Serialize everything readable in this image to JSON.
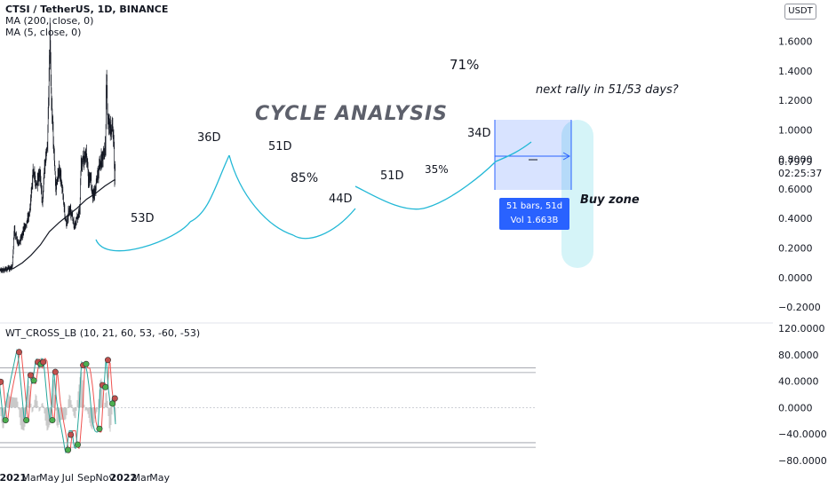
{
  "legend": {
    "symbol": "CTSI / TetherUS, 1D, BINANCE",
    "ma200": "MA (200, close, 0)",
    "ma5": "MA (5, close, 0)"
  },
  "oscillator_legend": "WT_CROSS_LB (10, 21, 60, 53, -60, -53)",
  "currency_button": "USDT",
  "last_price": "0.7979",
  "countdown": "02:25:37",
  "annotations": {
    "title": "CYCLE ANALYSIS",
    "question": "next rally in 51/53 days?",
    "buy_zone": "Buy zone",
    "pct_71": "71%",
    "pct_85": "85%",
    "pct_35": "35%",
    "d36": "36D",
    "d51a": "51D",
    "d53": "53D",
    "d44": "44D",
    "d51b": "51D",
    "d34": "34D"
  },
  "measure_box": {
    "line1": "51 bars, 51d",
    "line2": "Vol 1.663B"
  },
  "colors": {
    "candle": "#131722",
    "ma200": "#131722",
    "cycle_arcs": "#22b8d6",
    "wt1": "#26a69a",
    "wt2": "#ef5350",
    "measure": "#2962ff",
    "buy_zone": "#b2ebf2"
  },
  "chart_data": [
    {
      "type": "candlestick",
      "title": "CTSI / TetherUS, 1D, BINANCE",
      "x_ticks": [
        "2021",
        "Mar",
        "May",
        "Jul",
        "Sep",
        "Nov",
        "2022",
        "Mar",
        "May"
      ],
      "y_ticks": [
        "1.6000",
        "1.4000",
        "1.2000",
        "1.0000",
        "0.8000",
        "0.6000",
        "0.4000",
        "0.2000",
        "0.0000",
        "−0.2000"
      ],
      "ylim": [
        -0.26,
        1.82
      ],
      "close_path": [
        {
          "x": "2020-11-01",
          "y": 0.05
        },
        {
          "x": "2020-12-01",
          "y": 0.05
        },
        {
          "x": "2020-12-29",
          "y": 0.07
        },
        {
          "x": "2021-01-05",
          "y": 0.32
        },
        {
          "x": "2021-01-18",
          "y": 0.22
        },
        {
          "x": "2021-02-01",
          "y": 0.3
        },
        {
          "x": "2021-02-15",
          "y": 0.38
        },
        {
          "x": "2021-02-25",
          "y": 0.45
        },
        {
          "x": "2021-03-08",
          "y": 0.72
        },
        {
          "x": "2021-03-20",
          "y": 0.62
        },
        {
          "x": "2021-04-01",
          "y": 0.7
        },
        {
          "x": "2021-04-08",
          "y": 0.5
        },
        {
          "x": "2021-04-15",
          "y": 0.75
        },
        {
          "x": "2021-04-25",
          "y": 0.9
        },
        {
          "x": "2021-05-03",
          "y": 1.65
        },
        {
          "x": "2021-05-08",
          "y": 1.2
        },
        {
          "x": "2021-05-13",
          "y": 1.0
        },
        {
          "x": "2021-05-22",
          "y": 0.6
        },
        {
          "x": "2021-06-01",
          "y": 0.72
        },
        {
          "x": "2021-06-10",
          "y": 0.66
        },
        {
          "x": "2021-06-20",
          "y": 0.45
        },
        {
          "x": "2021-06-26",
          "y": 0.36
        },
        {
          "x": "2021-07-05",
          "y": 0.46
        },
        {
          "x": "2021-07-15",
          "y": 0.42
        },
        {
          "x": "2021-07-22",
          "y": 0.34
        },
        {
          "x": "2021-08-01",
          "y": 0.4
        },
        {
          "x": "2021-08-10",
          "y": 0.46
        },
        {
          "x": "2021-08-14",
          "y": 0.78
        },
        {
          "x": "2021-08-22",
          "y": 0.8
        },
        {
          "x": "2021-09-01",
          "y": 0.85
        },
        {
          "x": "2021-09-07",
          "y": 0.66
        },
        {
          "x": "2021-09-15",
          "y": 0.68
        },
        {
          "x": "2021-09-22",
          "y": 0.55
        },
        {
          "x": "2021-09-30",
          "y": 0.6
        },
        {
          "x": "2021-10-08",
          "y": 0.7
        },
        {
          "x": "2021-10-18",
          "y": 0.78
        },
        {
          "x": "2021-10-28",
          "y": 0.83
        },
        {
          "x": "2021-11-03",
          "y": 0.88
        },
        {
          "x": "2021-11-06",
          "y": 1.4
        },
        {
          "x": "2021-11-10",
          "y": 1.1
        },
        {
          "x": "2021-11-18",
          "y": 1.0
        },
        {
          "x": "2021-11-26",
          "y": 1.02
        },
        {
          "x": "2021-11-30",
          "y": 0.96
        },
        {
          "x": "2021-12-03",
          "y": 0.68
        },
        {
          "x": "2021-12-06",
          "y": 0.7979
        }
      ],
      "ma200_path": [
        {
          "x": "2020-11-01",
          "y": 0.05
        },
        {
          "x": "2021-01-01",
          "y": 0.06
        },
        {
          "x": "2021-02-01",
          "y": 0.1
        },
        {
          "x": "2021-03-01",
          "y": 0.15
        },
        {
          "x": "2021-04-01",
          "y": 0.22
        },
        {
          "x": "2021-05-01",
          "y": 0.31
        },
        {
          "x": "2021-06-01",
          "y": 0.37
        },
        {
          "x": "2021-07-01",
          "y": 0.42
        },
        {
          "x": "2021-08-01",
          "y": 0.47
        },
        {
          "x": "2021-09-01",
          "y": 0.53
        },
        {
          "x": "2021-10-01",
          "y": 0.57
        },
        {
          "x": "2021-11-01",
          "y": 0.62
        },
        {
          "x": "2021-12-01",
          "y": 0.66
        },
        {
          "x": "2021-12-06",
          "y": 0.66
        }
      ]
    },
    {
      "type": "line",
      "title": "WT_CROSS_LB (10, 21, 60, 53, -60, -53)",
      "y_ticks": [
        "120.0000",
        "80.0000",
        "40.0000",
        "0.0000",
        "−40.0000",
        "−80.0000"
      ],
      "ylim": [
        -92,
        128
      ],
      "levels": [
        60,
        53,
        -53,
        -60
      ],
      "series": [
        {
          "name": "",
          "points": [
            {
              "x": "2020-11-01",
              "y": 25
            },
            {
              "x": "2020-11-15",
              "y": 45
            },
            {
              "x": "2020-12-01",
              "y": -25
            },
            {
              "x": "2020-12-10",
              "y": 10
            },
            {
              "x": "2020-12-25",
              "y": 45
            },
            {
              "x": "2021-01-08",
              "y": 75
            },
            {
              "x": "2021-01-15",
              "y": 90
            },
            {
              "x": "2021-01-28",
              "y": 30
            },
            {
              "x": "2021-02-08",
              "y": -25
            },
            {
              "x": "2021-02-22",
              "y": 55
            },
            {
              "x": "2021-03-05",
              "y": 35
            },
            {
              "x": "2021-03-18",
              "y": 75
            },
            {
              "x": "2021-03-28",
              "y": 60
            },
            {
              "x": "2021-04-05",
              "y": 75
            },
            {
              "x": "2021-04-12",
              "y": 70
            },
            {
              "x": "2021-04-25",
              "y": 5
            },
            {
              "x": "2021-05-05",
              "y": -25
            },
            {
              "x": "2021-05-15",
              "y": 60
            },
            {
              "x": "2021-05-25",
              "y": 10
            },
            {
              "x": "2021-06-05",
              "y": -20
            },
            {
              "x": "2021-06-15",
              "y": -45
            },
            {
              "x": "2021-06-22",
              "y": -65
            },
            {
              "x": "2021-06-26",
              "y": -70
            },
            {
              "x": "2021-07-05",
              "y": -35
            },
            {
              "x": "2021-07-15",
              "y": -35
            },
            {
              "x": "2021-07-22",
              "y": -60
            },
            {
              "x": "2021-07-28",
              "y": -62
            },
            {
              "x": "2021-08-08",
              "y": 0
            },
            {
              "x": "2021-08-15",
              "y": 70
            },
            {
              "x": "2021-08-25",
              "y": 60
            },
            {
              "x": "2021-09-01",
              "y": 60
            },
            {
              "x": "2021-09-10",
              "y": 30
            },
            {
              "x": "2021-09-20",
              "y": -20
            },
            {
              "x": "2021-09-28",
              "y": -35
            },
            {
              "x": "2021-10-08",
              "y": -38
            },
            {
              "x": "2021-10-18",
              "y": 40
            },
            {
              "x": "2021-10-28",
              "y": 25
            },
            {
              "x": "2021-11-05",
              "y": 78
            },
            {
              "x": "2021-11-12",
              "y": 30
            },
            {
              "x": "2021-11-20",
              "y": 0
            },
            {
              "x": "2021-11-28",
              "y": 20
            },
            {
              "x": "2021-12-06",
              "y": -25
            }
          ]
        }
      ]
    }
  ]
}
